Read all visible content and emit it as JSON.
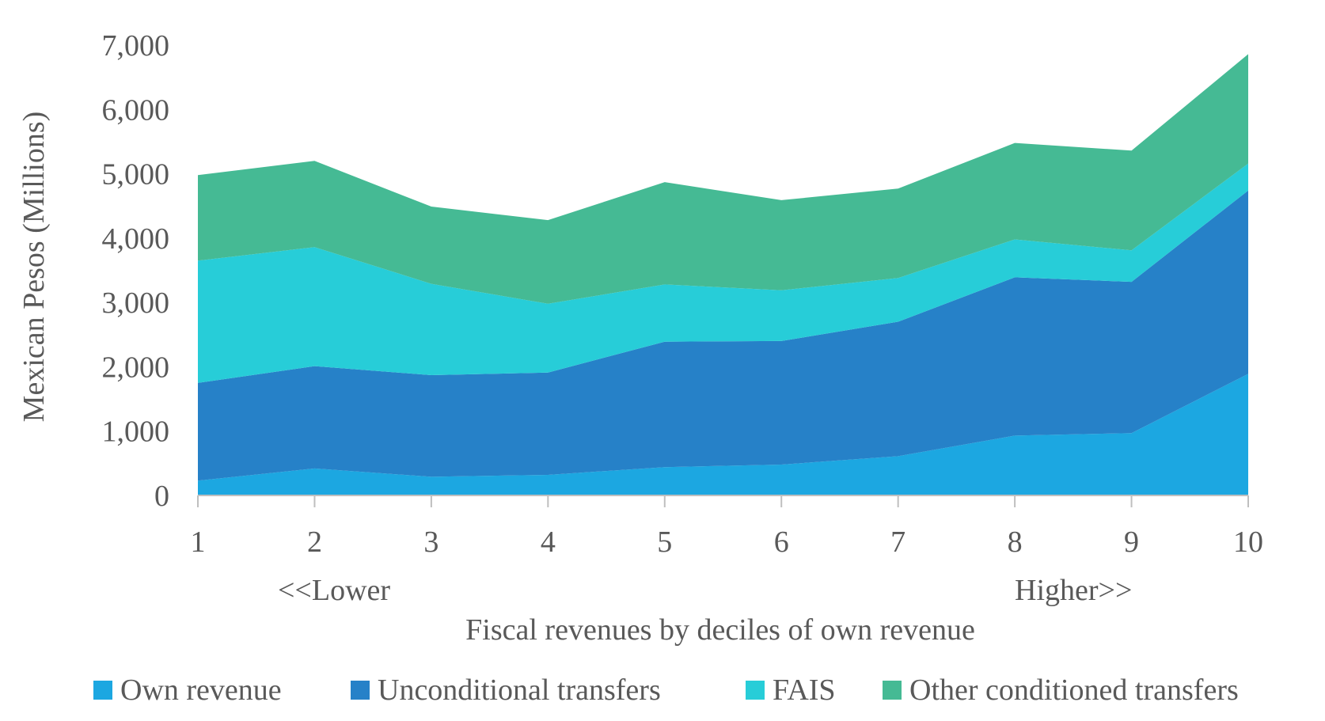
{
  "chart_data": {
    "type": "area",
    "stacked": true,
    "xlabel": "Fiscal revenues by deciles of own revenue",
    "ylabel": "Mexican Pesos (Millions)",
    "x": [
      "1",
      "2",
      "3",
      "4",
      "5",
      "6",
      "7",
      "8",
      "9",
      "10"
    ],
    "ylim": [
      0,
      7000
    ],
    "yticks": [
      "0",
      "1,000",
      "2,000",
      "3,000",
      "4,000",
      "5,000",
      "6,000",
      "7,000"
    ],
    "ytick_values": [
      0,
      1000,
      2000,
      3000,
      4000,
      5000,
      6000,
      7000
    ],
    "annotations": {
      "lower": "<<Lower",
      "higher": "Higher>>"
    },
    "legend_position": "bottom",
    "grid": false,
    "series": [
      {
        "name": "Own revenue",
        "color": "#1CA7E1",
        "values": [
          230,
          420,
          290,
          320,
          440,
          480,
          610,
          930,
          970,
          1890
        ]
      },
      {
        "name": "Unconditional transfers",
        "color": "#2681C8",
        "values": [
          1520,
          1590,
          1580,
          1590,
          1950,
          1920,
          2090,
          2460,
          2350,
          2850
        ]
      },
      {
        "name": "FAIS",
        "color": "#27CDD8",
        "values": [
          1900,
          1850,
          1420,
          1070,
          890,
          790,
          680,
          590,
          490,
          420
        ]
      },
      {
        "name": "Other conditioned transfers",
        "color": "#45BA94",
        "values": [
          1330,
          1340,
          1200,
          1300,
          1590,
          1400,
          1390,
          1500,
          1550,
          1700
        ]
      }
    ]
  }
}
